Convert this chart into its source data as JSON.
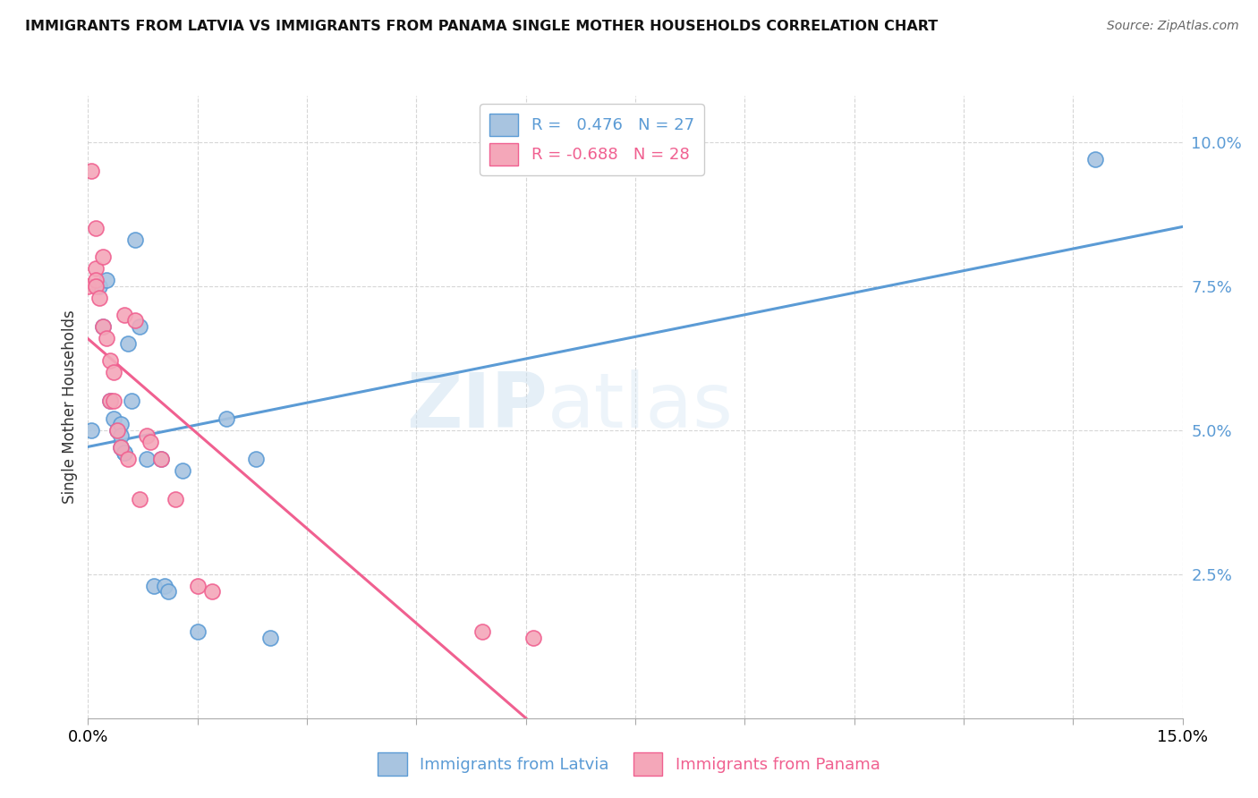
{
  "title": "IMMIGRANTS FROM LATVIA VS IMMIGRANTS FROM PANAMA SINGLE MOTHER HOUSEHOLDS CORRELATION CHART",
  "source": "Source: ZipAtlas.com",
  "ylabel": "Single Mother Households",
  "x_min": 0.0,
  "x_max": 15.0,
  "y_min": 0.0,
  "y_max": 10.8,
  "legend_label_latvia": "Immigrants from Latvia",
  "legend_label_panama": "Immigrants from Panama",
  "r_latvia": 0.476,
  "n_latvia": 27,
  "r_panama": -0.688,
  "n_panama": 28,
  "color_latvia": "#a8c4e0",
  "color_panama": "#f4a7b9",
  "color_line_latvia": "#5b9bd5",
  "color_line_panama": "#f06090",
  "watermark_zip": "ZIP",
  "watermark_atlas": "atlas",
  "latvia_x": [
    0.05,
    0.15,
    0.2,
    0.25,
    0.3,
    0.35,
    0.4,
    0.45,
    0.45,
    0.45,
    0.5,
    0.5,
    0.55,
    0.6,
    0.65,
    0.7,
    0.8,
    0.9,
    1.0,
    1.05,
    1.1,
    1.3,
    1.5,
    1.9,
    2.3,
    2.5,
    13.8
  ],
  "latvia_y": [
    5.0,
    7.5,
    6.8,
    7.6,
    5.5,
    5.2,
    5.0,
    5.1,
    4.9,
    4.7,
    4.6,
    4.6,
    6.5,
    5.5,
    8.3,
    6.8,
    4.5,
    2.3,
    4.5,
    2.3,
    2.2,
    4.3,
    1.5,
    5.2,
    4.5,
    1.4,
    9.7
  ],
  "panama_x": [
    0.0,
    0.05,
    0.1,
    0.1,
    0.1,
    0.1,
    0.15,
    0.2,
    0.2,
    0.25,
    0.3,
    0.3,
    0.35,
    0.35,
    0.4,
    0.45,
    0.5,
    0.55,
    0.65,
    0.7,
    0.8,
    0.85,
    1.0,
    1.2,
    1.5,
    1.7,
    5.4,
    6.1
  ],
  "panama_y": [
    7.5,
    9.5,
    8.5,
    7.8,
    7.6,
    7.5,
    7.3,
    8.0,
    6.8,
    6.6,
    5.5,
    6.2,
    6.0,
    5.5,
    5.0,
    4.7,
    7.0,
    4.5,
    6.9,
    3.8,
    4.9,
    4.8,
    4.5,
    3.8,
    2.3,
    2.2,
    1.5,
    1.4
  ],
  "y_ticks": [
    2.5,
    5.0,
    7.5,
    10.0
  ],
  "x_ticks": [
    0.0,
    1.5,
    3.0,
    4.5,
    6.0,
    7.5,
    9.0,
    10.5,
    12.0,
    13.5,
    15.0
  ]
}
